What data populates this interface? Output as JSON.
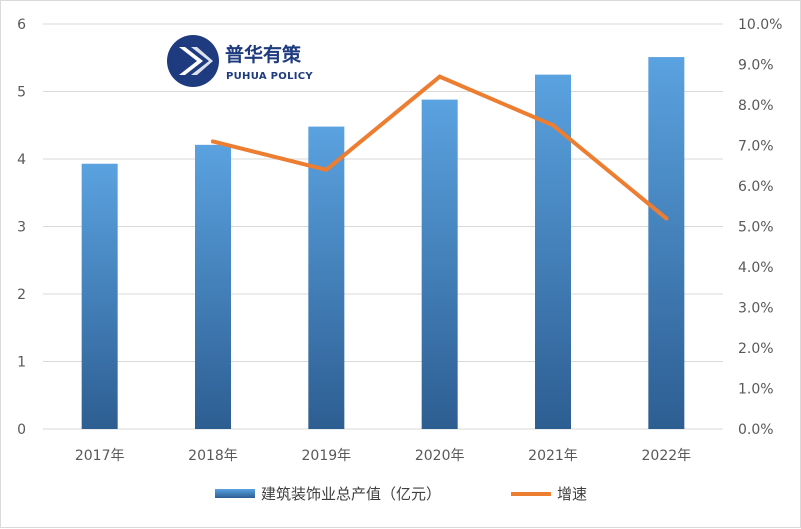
{
  "logo": {
    "name_cn": "普华有策",
    "name_en": "PUHUA POLICY",
    "color": "#1f3b80"
  },
  "chart_data": {
    "type": "bar",
    "categories": [
      "2017年",
      "2018年",
      "2019年",
      "2020年",
      "2021年",
      "2022年"
    ],
    "series": [
      {
        "name": "建筑装饰业总产值（亿元）",
        "type": "bar",
        "axis": "left",
        "values": [
          3.93,
          4.21,
          4.48,
          4.88,
          5.25,
          5.51
        ],
        "color_top": "#5aa2e0",
        "color_bottom": "#2d5e92"
      },
      {
        "name": "增速",
        "type": "line",
        "axis": "right",
        "values": [
          null,
          0.071,
          0.064,
          0.087,
          0.075,
          0.052
        ],
        "color": "#ed7d31"
      }
    ],
    "y_left": {
      "min": 0,
      "max": 6,
      "ticks": [
        "0",
        "1",
        "2",
        "3",
        "4",
        "5",
        "6"
      ]
    },
    "y_right": {
      "min": 0,
      "max": 0.1,
      "ticks": [
        "0.0%",
        "1.0%",
        "2.0%",
        "3.0%",
        "4.0%",
        "5.0%",
        "6.0%",
        "7.0%",
        "8.0%",
        "9.0%",
        "10.0%"
      ]
    },
    "grid": true,
    "legend": "bottom-center",
    "title": ""
  }
}
